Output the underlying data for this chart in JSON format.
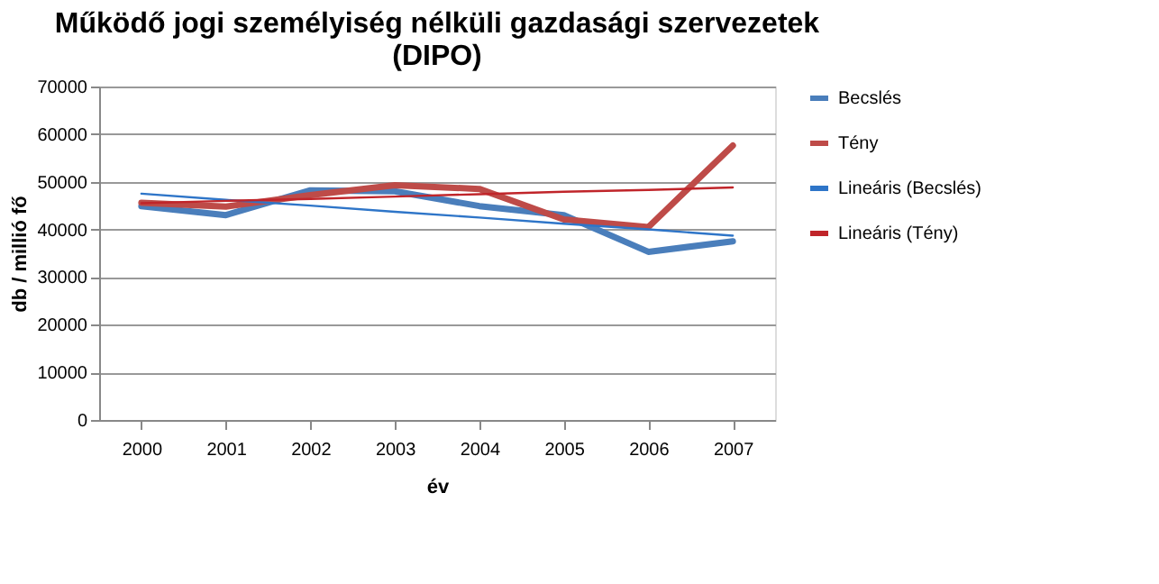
{
  "chart_data": {
    "type": "line",
    "title": [
      "Működő jogi személyiség nélküli gazdasági szervezetek",
      "(DIPO)"
    ],
    "xlabel": "év",
    "ylabel": "db / millió fő",
    "categories": [
      "2000",
      "2001",
      "2002",
      "2003",
      "2004",
      "2005",
      "2006",
      "2007"
    ],
    "series": [
      {
        "name": "Becslés",
        "color": "#4a7ebb",
        "values": [
          44900,
          43000,
          48200,
          48000,
          44900,
          43000,
          35300,
          37500
        ]
      },
      {
        "name": "Tény",
        "color": "#be4b48",
        "values": [
          45600,
          44800,
          47200,
          49300,
          48500,
          42100,
          40500,
          57600
        ]
      },
      {
        "name": "Lineáris (Becslés)",
        "color": "#2e75c8",
        "type": "line",
        "values": [
          47500,
          46200,
          45000,
          43700,
          42500,
          41200,
          40000,
          38700
        ]
      },
      {
        "name": "Lineáris (Tény)",
        "color": "#c0252a",
        "type": "line",
        "values": [
          45500,
          46000,
          46400,
          46900,
          47400,
          47900,
          48300,
          48800
        ]
      }
    ],
    "ylim": [
      0,
      70000
    ],
    "yticks": [
      0,
      10000,
      20000,
      30000,
      40000,
      50000,
      60000,
      70000
    ],
    "grid": "y",
    "legend": "right",
    "marker": "none",
    "line_style": "solid"
  }
}
